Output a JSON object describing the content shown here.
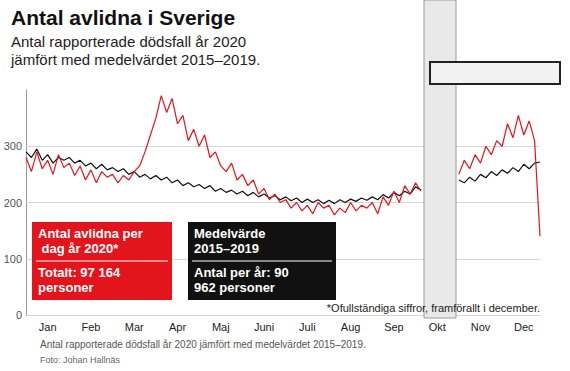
{
  "chart_data": {
    "type": "line",
    "title": "Antal avlidna i Sverige",
    "subtitle": "Antal rapporterade dödsfall år 2020 jämfört med medelvärdet 2015–2019.",
    "footnote": "*Ofullständiga siffror, framförallt i december.",
    "caption": "Antal rapporterade dödsfall år 2020 jämfört med medelvärdet 2015–2019.",
    "credit": "Foto: Johan Hallnäs",
    "categories": [
      null,
      null,
      null,
      null,
      "Jan",
      null,
      null,
      null,
      null,
      null,
      null,
      null,
      "Feb",
      null,
      null,
      null,
      null,
      null,
      null,
      null,
      "Mar",
      null,
      null,
      null,
      null,
      null,
      null,
      null,
      "Apr",
      null,
      null,
      null,
      null,
      null,
      null,
      null,
      "Maj",
      null,
      null,
      null,
      null,
      null,
      null,
      null,
      "Juni",
      null,
      null,
      null,
      null,
      null,
      null,
      null,
      "Juli",
      null,
      null,
      null,
      null,
      null,
      null,
      null,
      "Aug",
      null,
      null,
      null,
      null,
      null,
      null,
      null,
      "Sep",
      null,
      null,
      null,
      null,
      null,
      null,
      null,
      "Okt",
      null,
      null,
      null,
      null,
      null,
      null,
      null,
      "Nov",
      null,
      null,
      null,
      null,
      null,
      null,
      null,
      "Dec",
      null,
      null,
      null
    ],
    "series": [
      {
        "name": "Medelvärde 2015–2019",
        "total_text": "Antal per år: 90 962 personer",
        "color": "#111111",
        "values": [
          290,
          280,
          295,
          275,
          285,
          270,
          280,
          275,
          280,
          270,
          275,
          265,
          270,
          260,
          268,
          258,
          262,
          255,
          260,
          250,
          255,
          245,
          250,
          242,
          248,
          240,
          245,
          235,
          240,
          230,
          235,
          228,
          232,
          225,
          230,
          220,
          225,
          218,
          222,
          215,
          220,
          212,
          218,
          210,
          215,
          208,
          212,
          205,
          210,
          203,
          208,
          200,
          206,
          200,
          205,
          198,
          204,
          198,
          205,
          200,
          206,
          202,
          208,
          204,
          210,
          205,
          214,
          208,
          218,
          212,
          220,
          215,
          228,
          222,
          null,
          null,
          null,
          null,
          null,
          null,
          240,
          235,
          245,
          238,
          250,
          244,
          255,
          248,
          258,
          252,
          262,
          255,
          268,
          260,
          270,
          272
        ]
      },
      {
        "name": "Antal avlidna per dag år 2020*",
        "total_text": "Totalt: 97 164 personer",
        "color": "#e3141b",
        "values": [
          280,
          255,
          290,
          260,
          275,
          250,
          285,
          262,
          270,
          248,
          265,
          240,
          258,
          235,
          255,
          245,
          250,
          235,
          248,
          240,
          255,
          265,
          290,
          320,
          350,
          390,
          360,
          385,
          340,
          355,
          310,
          330,
          300,
          320,
          280,
          290,
          265,
          255,
          270,
          240,
          250,
          230,
          240,
          215,
          225,
          205,
          215,
          200,
          205,
          190,
          200,
          185,
          195,
          180,
          200,
          190,
          195,
          178,
          190,
          182,
          200,
          185,
          195,
          190,
          200,
          180,
          210,
          195,
          220,
          200,
          230,
          215,
          235,
          220,
          null,
          null,
          null,
          null,
          null,
          null,
          250,
          275,
          260,
          285,
          270,
          300,
          285,
          310,
          300,
          340,
          315,
          355,
          320,
          345,
          310,
          140
        ]
      }
    ],
    "ylim": [
      0,
      400
    ],
    "yticks": [
      0,
      100,
      200,
      300
    ],
    "grid": true
  }
}
